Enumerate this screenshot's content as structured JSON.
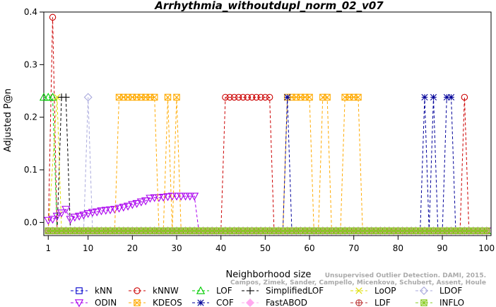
{
  "chart_data": {
    "type": "line",
    "title": "Arrhythmia_withoutdupl_norm_02_v07",
    "xlabel": "Neighborhood size",
    "ylabel": "Adjusted P@n",
    "xlim": [
      0,
      101
    ],
    "ylim": [
      -0.025,
      0.4
    ],
    "x_ticks": [
      1,
      10,
      20,
      30,
      40,
      50,
      60,
      70,
      80,
      90,
      100
    ],
    "y_ticks": [
      0.0,
      0.1,
      0.2,
      0.3,
      0.4
    ],
    "grid": false,
    "legend_position": "bottom",
    "baseline_value": -0.016,
    "series": [
      {
        "name": "kNN",
        "color": "#0000cc",
        "marker": "square",
        "points": [
          [
            1,
            -0.016
          ],
          [
            100,
            -0.016
          ]
        ]
      },
      {
        "name": "kNNW",
        "color": "#cc0000",
        "marker": "circle",
        "points": [
          [
            1,
            -0.016
          ],
          [
            2,
            0.39
          ],
          [
            3,
            -0.016
          ],
          [
            40,
            -0.016
          ],
          [
            41,
            0.238
          ],
          [
            42,
            0.238
          ],
          [
            43,
            0.238
          ],
          [
            44,
            0.238
          ],
          [
            45,
            0.238
          ],
          [
            46,
            0.238
          ],
          [
            47,
            0.238
          ],
          [
            48,
            0.238
          ],
          [
            49,
            0.238
          ],
          [
            50,
            0.238
          ],
          [
            51,
            0.238
          ],
          [
            52,
            -0.016
          ],
          [
            94,
            -0.016
          ],
          [
            95,
            0.238
          ],
          [
            96,
            -0.016
          ],
          [
            100,
            -0.016
          ]
        ]
      },
      {
        "name": "LOF",
        "color": "#00cc00",
        "marker": "triangle",
        "points": [
          [
            0,
            0.238
          ],
          [
            1,
            0.238
          ],
          [
            2,
            0.238
          ],
          [
            3,
            -0.016
          ],
          [
            100,
            -0.016
          ]
        ]
      },
      {
        "name": "SimplifiedLOF",
        "color": "#000000",
        "marker": "plus",
        "points": [
          [
            1,
            -0.016
          ],
          [
            3,
            -0.016
          ],
          [
            4,
            0.238
          ],
          [
            5,
            0.238
          ],
          [
            6,
            -0.016
          ],
          [
            100,
            -0.016
          ]
        ]
      },
      {
        "name": "LoOP",
        "color": "#dddd00",
        "marker": "x",
        "points": [
          [
            1,
            -0.016
          ],
          [
            3,
            0.238
          ],
          [
            4,
            -0.016
          ],
          [
            100,
            -0.016
          ]
        ]
      },
      {
        "name": "LDOF",
        "color": "#aaaadd",
        "marker": "diamond",
        "points": [
          [
            1,
            -0.016
          ],
          [
            9,
            -0.016
          ],
          [
            10,
            0.238
          ],
          [
            11,
            -0.016
          ],
          [
            100,
            -0.016
          ]
        ]
      },
      {
        "name": "ODIN",
        "color": "#aa00ee",
        "marker": "down-triangle",
        "points": [
          [
            1,
            0.004
          ],
          [
            2,
            0.006
          ],
          [
            3,
            0.012
          ],
          [
            4,
            0.018
          ],
          [
            5,
            0.025
          ],
          [
            6,
            0.006
          ],
          [
            7,
            0.01
          ],
          [
            8,
            0.012
          ],
          [
            9,
            0.014
          ],
          [
            10,
            0.017
          ],
          [
            11,
            0.019
          ],
          [
            12,
            0.02
          ],
          [
            13,
            0.022
          ],
          [
            14,
            0.023
          ],
          [
            15,
            0.024
          ],
          [
            16,
            0.025
          ],
          [
            17,
            0.027
          ],
          [
            18,
            0.029
          ],
          [
            19,
            0.031
          ],
          [
            20,
            0.034
          ],
          [
            21,
            0.036
          ],
          [
            22,
            0.039
          ],
          [
            23,
            0.041
          ],
          [
            24,
            0.046
          ],
          [
            25,
            0.047
          ],
          [
            26,
            0.047
          ],
          [
            27,
            0.048
          ],
          [
            28,
            0.049
          ],
          [
            29,
            0.05
          ],
          [
            30,
            0.05
          ],
          [
            31,
            0.05
          ],
          [
            32,
            0.05
          ],
          [
            33,
            0.05
          ],
          [
            34,
            0.05
          ],
          [
            35,
            -0.016
          ],
          [
            100,
            -0.016
          ]
        ]
      },
      {
        "name": "KDEOS",
        "color": "#ffaa00",
        "marker": "square-x",
        "points": [
          [
            1,
            -0.016
          ],
          [
            16,
            -0.016
          ],
          [
            17,
            0.238
          ],
          [
            18,
            0.238
          ],
          [
            19,
            0.238
          ],
          [
            20,
            0.238
          ],
          [
            21,
            0.238
          ],
          [
            22,
            0.238
          ],
          [
            23,
            0.238
          ],
          [
            24,
            0.238
          ],
          [
            25,
            0.238
          ],
          [
            26,
            -0.016
          ],
          [
            27,
            -0.016
          ],
          [
            28,
            0.238
          ],
          [
            29,
            -0.016
          ],
          [
            30,
            0.238
          ],
          [
            31,
            -0.016
          ],
          [
            54,
            -0.016
          ],
          [
            55,
            0.238
          ],
          [
            56,
            0.238
          ],
          [
            57,
            0.238
          ],
          [
            58,
            0.238
          ],
          [
            59,
            0.238
          ],
          [
            60,
            0.238
          ],
          [
            61,
            -0.016
          ],
          [
            62,
            -0.016
          ],
          [
            63,
            0.238
          ],
          [
            64,
            0.238
          ],
          [
            65,
            -0.016
          ],
          [
            67,
            -0.016
          ],
          [
            68,
            0.238
          ],
          [
            69,
            0.238
          ],
          [
            70,
            0.238
          ],
          [
            71,
            0.238
          ],
          [
            72,
            -0.016
          ],
          [
            100,
            -0.016
          ]
        ]
      },
      {
        "name": "COF",
        "color": "#000099",
        "marker": "star",
        "points": [
          [
            1,
            -0.016
          ],
          [
            54,
            -0.016
          ],
          [
            55,
            0.238
          ],
          [
            56,
            -0.016
          ],
          [
            85,
            -0.016
          ],
          [
            86,
            0.238
          ],
          [
            87,
            -0.016
          ],
          [
            88,
            0.238
          ],
          [
            89,
            -0.016
          ],
          [
            90,
            -0.016
          ],
          [
            91,
            0.238
          ],
          [
            92,
            0.238
          ],
          [
            93,
            -0.016
          ],
          [
            100,
            -0.016
          ]
        ]
      },
      {
        "name": "FastABOD",
        "color": "#ffaaee",
        "marker": "diamond-filled",
        "points": [
          [
            1,
            -0.016
          ],
          [
            100,
            -0.016
          ]
        ]
      },
      {
        "name": "LDF",
        "color": "#bb3333",
        "marker": "circle-plus",
        "points": [
          [
            1,
            -0.016
          ],
          [
            100,
            -0.016
          ]
        ]
      },
      {
        "name": "INFLO",
        "color": "#88cc22",
        "marker": "square-star",
        "points": [
          [
            1,
            -0.016
          ],
          [
            100,
            -0.016
          ]
        ]
      }
    ]
  },
  "credit_lines": [
    "Unsupervised Outlier Detection. DAMI, 2015.",
    "Campos, Zimek, Sander, Campello, Micenkova, Schubert, Assent, Houle"
  ]
}
